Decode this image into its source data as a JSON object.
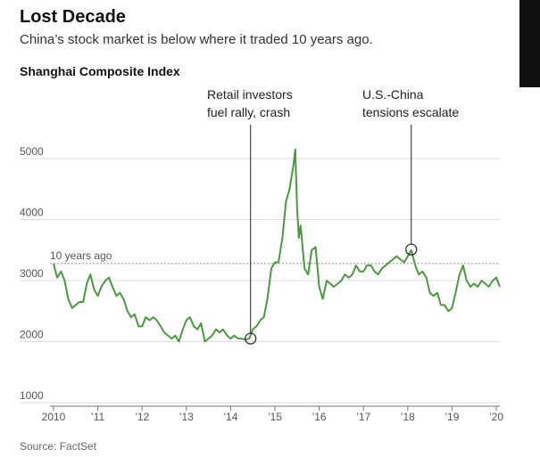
{
  "header": {
    "title": "Lost Decade",
    "subtitle": "China’s stock market is below where it traded 10 years ago.",
    "chart_title": "Shanghai Composite Index",
    "source": "Source: FactSet"
  },
  "colors": {
    "line": "#4a9a3f",
    "grid": "#dddddd",
    "reference": "#999999"
  },
  "chart_data": {
    "type": "line",
    "title": "Shanghai Composite Index",
    "xlabel": "",
    "ylabel": "",
    "xlim": [
      2010.0,
      2020.1
    ],
    "ylim": [
      1000,
      5300
    ],
    "grid": true,
    "yticks": [
      1000,
      2000,
      3000,
      4000,
      5000
    ],
    "ytick_labels": [
      "1000",
      "2000",
      "3000",
      "4000",
      "5000"
    ],
    "xticks": [
      2010,
      2011,
      2012,
      2013,
      2014,
      2015,
      2016,
      2017,
      2018,
      2019,
      2020
    ],
    "xtick_labels": [
      "2010",
      "’11",
      "’12",
      "’13",
      "’14",
      "’15",
      "’16",
      "’17",
      "’18",
      "’19",
      "’20"
    ],
    "reference_line": {
      "value": 3280,
      "label": "10 years ago"
    },
    "annotations": [
      {
        "label_lines": [
          "Retail investors",
          "fuel rally, crash"
        ],
        "x": 2014.45,
        "y": 2050
      },
      {
        "label_lines": [
          "U.S.-China",
          "tensions escalate"
        ],
        "x": 2018.08,
        "y": 3510
      }
    ],
    "series": [
      {
        "x": [
          2010.0,
          2010.08,
          2010.17,
          2010.25,
          2010.33,
          2010.42,
          2010.5,
          2010.58,
          2010.67,
          2010.75,
          2010.83,
          2010.92,
          2011.0,
          2011.08,
          2011.17,
          2011.25,
          2011.33,
          2011.42,
          2011.5,
          2011.58,
          2011.67,
          2011.75,
          2011.83,
          2011.92,
          2012.0,
          2012.08,
          2012.17,
          2012.25,
          2012.33,
          2012.42,
          2012.5,
          2012.58,
          2012.67,
          2012.75,
          2012.83,
          2012.92,
          2013.0,
          2013.08,
          2013.17,
          2013.25,
          2013.33,
          2013.42,
          2013.5,
          2013.58,
          2013.67,
          2013.75,
          2013.83,
          2013.92,
          2014.0,
          2014.08,
          2014.17,
          2014.25,
          2014.33,
          2014.42,
          2014.5,
          2014.58,
          2014.67,
          2014.75,
          2014.83,
          2014.92,
          2015.0,
          2015.08,
          2015.17,
          2015.25,
          2015.33,
          2015.42,
          2015.46,
          2015.5,
          2015.54,
          2015.58,
          2015.67,
          2015.75,
          2015.83,
          2015.92,
          2016.0,
          2016.08,
          2016.17,
          2016.25,
          2016.33,
          2016.42,
          2016.5,
          2016.58,
          2016.67,
          2016.75,
          2016.83,
          2016.92,
          2017.0,
          2017.08,
          2017.17,
          2017.25,
          2017.33,
          2017.42,
          2017.5,
          2017.58,
          2017.67,
          2017.75,
          2017.83,
          2017.92,
          2018.0,
          2018.08,
          2018.17,
          2018.25,
          2018.33,
          2018.42,
          2018.5,
          2018.58,
          2018.67,
          2018.75,
          2018.83,
          2018.92,
          2019.0,
          2019.08,
          2019.17,
          2019.25,
          2019.33,
          2019.42,
          2019.5,
          2019.58,
          2019.67,
          2019.75,
          2019.83,
          2019.92,
          2020.0,
          2020.08
        ],
        "y": [
          3280,
          3050,
          3150,
          3000,
          2700,
          2550,
          2600,
          2650,
          2650,
          2950,
          3100,
          2850,
          2750,
          2900,
          3000,
          3050,
          2900,
          2750,
          2800,
          2700,
          2500,
          2400,
          2450,
          2250,
          2250,
          2400,
          2350,
          2400,
          2350,
          2250,
          2150,
          2100,
          2050,
          2100,
          2000,
          2200,
          2350,
          2400,
          2250,
          2200,
          2300,
          2000,
          2050,
          2100,
          2200,
          2150,
          2200,
          2100,
          2050,
          2100,
          2050,
          2050,
          2030,
          2050,
          2200,
          2250,
          2350,
          2400,
          2700,
          3200,
          3300,
          3300,
          3700,
          4300,
          4500,
          4900,
          5150,
          4200,
          3700,
          3900,
          3200,
          3100,
          3500,
          3550,
          2900,
          2700,
          3000,
          2950,
          2900,
          2950,
          3000,
          3100,
          3050,
          3100,
          3250,
          3150,
          3150,
          3250,
          3250,
          3150,
          3100,
          3200,
          3250,
          3300,
          3350,
          3400,
          3350,
          3300,
          3400,
          3500,
          3250,
          3100,
          3150,
          3050,
          2800,
          2750,
          2800,
          2600,
          2600,
          2500,
          2550,
          2800,
          3100,
          3250,
          3000,
          2900,
          2950,
          2900,
          3000,
          2950,
          2900,
          3000,
          3050,
          2900
        ]
      }
    ]
  }
}
